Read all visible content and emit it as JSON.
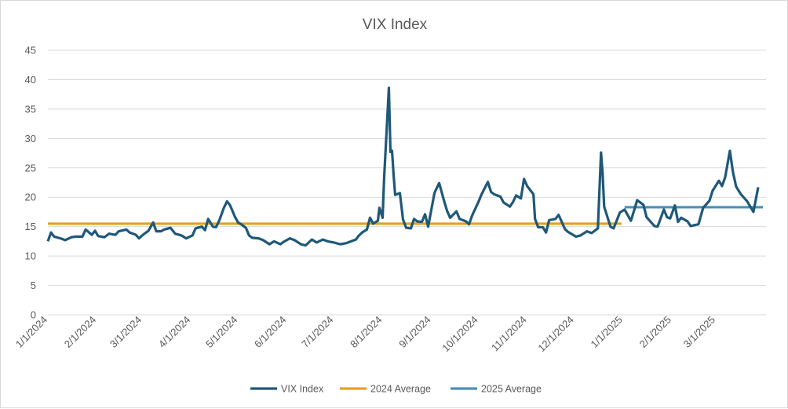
{
  "chart_data": {
    "type": "line",
    "title": "VIX Index",
    "xlabel": "",
    "ylabel": "",
    "ylim": [
      0,
      45
    ],
    "yticks": [
      0,
      5,
      10,
      15,
      20,
      25,
      30,
      35,
      40,
      45
    ],
    "xlim": [
      "2024-01-01",
      "2025-04-02"
    ],
    "xtick_dates": [
      "2024-01-01",
      "2024-02-01",
      "2024-03-01",
      "2024-04-01",
      "2024-05-01",
      "2024-06-01",
      "2024-07-01",
      "2024-08-01",
      "2024-09-01",
      "2024-10-01",
      "2024-11-01",
      "2024-12-01",
      "2025-01-01",
      "2025-02-01",
      "2025-03-01"
    ],
    "xtick_labels": [
      "1/1/2024",
      "2/1/2024",
      "3/1/2024",
      "4/1/2024",
      "5/1/2024",
      "6/1/2024",
      "7/1/2024",
      "8/1/2024",
      "9/1/2024",
      "10/1/2024",
      "11/1/2024",
      "12/1/2024",
      "1/1/2025",
      "2/1/2025",
      "3/1/2025"
    ],
    "grid": true,
    "legend": "bottom",
    "series": [
      {
        "name": "VIX Index",
        "color": "#1f5878",
        "points": [
          [
            "2024-01-01",
            12.5
          ],
          [
            "2024-01-03",
            14.0
          ],
          [
            "2024-01-05",
            13.3
          ],
          [
            "2024-01-09",
            13.0
          ],
          [
            "2024-01-12",
            12.7
          ],
          [
            "2024-01-16",
            13.2
          ],
          [
            "2024-01-19",
            13.3
          ],
          [
            "2024-01-23",
            13.3
          ],
          [
            "2024-01-25",
            14.5
          ],
          [
            "2024-01-29",
            13.6
          ],
          [
            "2024-01-31",
            14.3
          ],
          [
            "2024-02-02",
            13.4
          ],
          [
            "2024-02-06",
            13.2
          ],
          [
            "2024-02-09",
            13.8
          ],
          [
            "2024-02-13",
            13.6
          ],
          [
            "2024-02-15",
            14.2
          ],
          [
            "2024-02-20",
            14.5
          ],
          [
            "2024-02-22",
            14.0
          ],
          [
            "2024-02-26",
            13.6
          ],
          [
            "2024-02-28",
            13.0
          ],
          [
            "2024-03-01",
            13.5
          ],
          [
            "2024-03-05",
            14.3
          ],
          [
            "2024-03-08",
            15.7
          ],
          [
            "2024-03-10",
            14.2
          ],
          [
            "2024-03-13",
            14.2
          ],
          [
            "2024-03-15",
            14.5
          ],
          [
            "2024-03-19",
            14.8
          ],
          [
            "2024-03-22",
            13.8
          ],
          [
            "2024-03-26",
            13.5
          ],
          [
            "2024-03-29",
            13.0
          ],
          [
            "2024-04-02",
            13.5
          ],
          [
            "2024-04-04",
            14.7
          ],
          [
            "2024-04-08",
            15.0
          ],
          [
            "2024-04-10",
            14.4
          ],
          [
            "2024-04-12",
            16.3
          ],
          [
            "2024-04-15",
            15.0
          ],
          [
            "2024-04-17",
            14.9
          ],
          [
            "2024-04-19",
            16.0
          ],
          [
            "2024-04-22",
            18.2
          ],
          [
            "2024-04-24",
            19.3
          ],
          [
            "2024-04-26",
            18.6
          ],
          [
            "2024-04-29",
            16.7
          ],
          [
            "2024-05-01",
            15.7
          ],
          [
            "2024-05-03",
            15.4
          ],
          [
            "2024-05-06",
            14.8
          ],
          [
            "2024-05-08",
            13.5
          ],
          [
            "2024-05-10",
            13.1
          ],
          [
            "2024-05-14",
            13.0
          ],
          [
            "2024-05-17",
            12.7
          ],
          [
            "2024-05-21",
            12.0
          ],
          [
            "2024-05-24",
            12.5
          ],
          [
            "2024-05-28",
            12.0
          ],
          [
            "2024-05-30",
            12.4
          ],
          [
            "2024-06-03",
            13.0
          ],
          [
            "2024-06-06",
            12.7
          ],
          [
            "2024-06-10",
            12.0
          ],
          [
            "2024-06-13",
            11.8
          ],
          [
            "2024-06-17",
            12.8
          ],
          [
            "2024-06-20",
            12.3
          ],
          [
            "2024-06-24",
            12.8
          ],
          [
            "2024-06-27",
            12.5
          ],
          [
            "2024-07-01",
            12.3
          ],
          [
            "2024-07-05",
            12.0
          ],
          [
            "2024-07-09",
            12.2
          ],
          [
            "2024-07-12",
            12.5
          ],
          [
            "2024-07-15",
            12.8
          ],
          [
            "2024-07-17",
            13.5
          ],
          [
            "2024-07-19",
            14.0
          ],
          [
            "2024-07-22",
            14.5
          ],
          [
            "2024-07-24",
            16.5
          ],
          [
            "2024-07-26",
            15.5
          ],
          [
            "2024-07-29",
            16.0
          ],
          [
            "2024-07-30",
            18.2
          ],
          [
            "2024-08-01",
            16.5
          ],
          [
            "2024-08-02",
            23.4
          ],
          [
            "2024-08-05",
            38.6
          ],
          [
            "2024-08-06",
            27.7
          ],
          [
            "2024-08-07",
            27.9
          ],
          [
            "2024-08-08",
            23.8
          ],
          [
            "2024-08-09",
            20.4
          ],
          [
            "2024-08-12",
            20.7
          ],
          [
            "2024-08-14",
            16.2
          ],
          [
            "2024-08-16",
            14.8
          ],
          [
            "2024-08-19",
            14.7
          ],
          [
            "2024-08-21",
            16.3
          ],
          [
            "2024-08-23",
            15.9
          ],
          [
            "2024-08-26",
            15.8
          ],
          [
            "2024-08-28",
            17.1
          ],
          [
            "2024-08-30",
            15.0
          ],
          [
            "2024-09-03",
            20.7
          ],
          [
            "2024-09-04",
            21.3
          ],
          [
            "2024-09-06",
            22.4
          ],
          [
            "2024-09-09",
            19.5
          ],
          [
            "2024-09-11",
            17.7
          ],
          [
            "2024-09-13",
            16.5
          ],
          [
            "2024-09-17",
            17.6
          ],
          [
            "2024-09-19",
            16.3
          ],
          [
            "2024-09-23",
            15.9
          ],
          [
            "2024-09-25",
            15.4
          ],
          [
            "2024-09-27",
            16.9
          ],
          [
            "2024-10-01",
            19.2
          ],
          [
            "2024-10-03",
            20.5
          ],
          [
            "2024-10-07",
            22.6
          ],
          [
            "2024-10-09",
            20.9
          ],
          [
            "2024-10-11",
            20.5
          ],
          [
            "2024-10-15",
            20.1
          ],
          [
            "2024-10-17",
            19.1
          ],
          [
            "2024-10-21",
            18.4
          ],
          [
            "2024-10-23",
            19.2
          ],
          [
            "2024-10-25",
            20.3
          ],
          [
            "2024-10-28",
            19.8
          ],
          [
            "2024-10-30",
            23.1
          ],
          [
            "2024-11-01",
            21.9
          ],
          [
            "2024-11-05",
            20.5
          ],
          [
            "2024-11-06",
            16.3
          ],
          [
            "2024-11-08",
            14.9
          ],
          [
            "2024-11-11",
            14.9
          ],
          [
            "2024-11-13",
            14.0
          ],
          [
            "2024-11-15",
            16.1
          ],
          [
            "2024-11-19",
            16.3
          ],
          [
            "2024-11-21",
            17.0
          ],
          [
            "2024-11-25",
            14.6
          ],
          [
            "2024-11-27",
            14.1
          ],
          [
            "2024-12-02",
            13.3
          ],
          [
            "2024-12-05",
            13.5
          ],
          [
            "2024-12-09",
            14.2
          ],
          [
            "2024-12-12",
            13.9
          ],
          [
            "2024-12-16",
            14.7
          ],
          [
            "2024-12-18",
            27.6
          ],
          [
            "2024-12-19",
            24.1
          ],
          [
            "2024-12-20",
            18.4
          ],
          [
            "2024-12-24",
            15.0
          ],
          [
            "2024-12-26",
            14.7
          ],
          [
            "2024-12-30",
            17.4
          ],
          [
            "2025-01-02",
            17.9
          ],
          [
            "2025-01-06",
            16.0
          ],
          [
            "2025-01-08",
            17.7
          ],
          [
            "2025-01-10",
            19.5
          ],
          [
            "2025-01-14",
            18.7
          ],
          [
            "2025-01-16",
            16.6
          ],
          [
            "2025-01-21",
            15.1
          ],
          [
            "2025-01-23",
            15.0
          ],
          [
            "2025-01-27",
            17.9
          ],
          [
            "2025-01-29",
            16.6
          ],
          [
            "2025-01-31",
            16.4
          ],
          [
            "2025-02-03",
            18.6
          ],
          [
            "2025-02-05",
            15.8
          ],
          [
            "2025-02-07",
            16.5
          ],
          [
            "2025-02-11",
            15.9
          ],
          [
            "2025-02-13",
            15.1
          ],
          [
            "2025-02-18",
            15.4
          ],
          [
            "2025-02-21",
            18.2
          ],
          [
            "2025-02-25",
            19.4
          ],
          [
            "2025-02-27",
            21.1
          ],
          [
            "2025-03-03",
            22.8
          ],
          [
            "2025-03-05",
            21.9
          ],
          [
            "2025-03-07",
            23.4
          ],
          [
            "2025-03-10",
            27.9
          ],
          [
            "2025-03-12",
            24.2
          ],
          [
            "2025-03-14",
            21.8
          ],
          [
            "2025-03-17",
            20.5
          ],
          [
            "2025-03-19",
            19.9
          ],
          [
            "2025-03-21",
            19.3
          ],
          [
            "2025-03-25",
            17.5
          ],
          [
            "2025-03-28",
            21.7
          ]
        ]
      },
      {
        "name": "2024 Average",
        "color": "#e3a21a",
        "points": [
          [
            "2024-01-01",
            15.5
          ],
          [
            "2024-12-31",
            15.5
          ]
        ]
      },
      {
        "name": "2025 Average",
        "color": "#4a90b4",
        "points": [
          [
            "2025-01-02",
            18.3
          ],
          [
            "2025-03-31",
            18.3
          ]
        ]
      }
    ]
  }
}
